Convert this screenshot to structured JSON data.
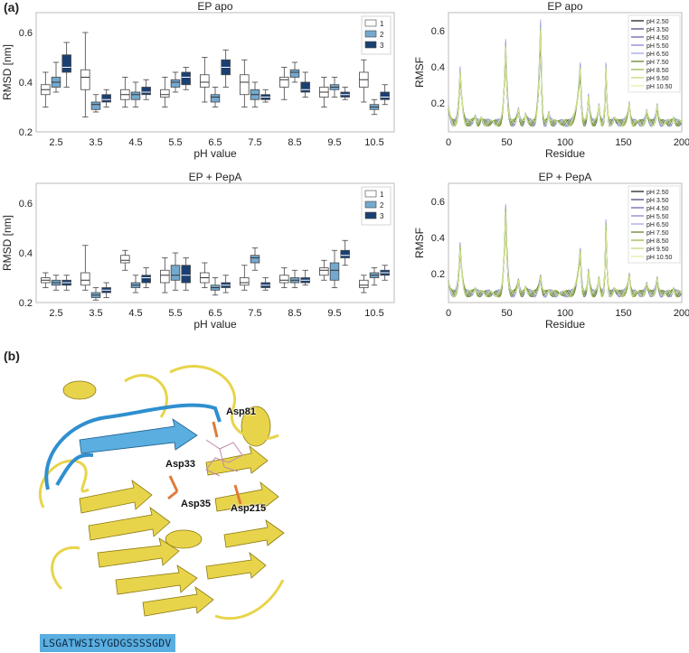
{
  "panel_labels": {
    "a": "(a)",
    "b": "(b)"
  },
  "chart_data": [
    {
      "id": "box-apo",
      "type": "box",
      "title": "EP apo",
      "xlabel": "pH value",
      "ylabel": "RMSD [nm]",
      "categories": [
        "2.5",
        "3.5",
        "4.5",
        "5.5",
        "6.5",
        "7.5",
        "8.5",
        "9.5",
        "10.5"
      ],
      "ylim": [
        0.2,
        0.68
      ],
      "yticks": [
        0.2,
        0.4,
        0.6
      ],
      "grid": false,
      "legend": "top-right",
      "series_colors": [
        "#ffffff",
        "#74a9cf",
        "#1a3f73"
      ],
      "series": [
        {
          "name": "1",
          "boxes": [
            {
              "min": 0.3,
              "q1": 0.35,
              "median": 0.37,
              "q3": 0.39,
              "max": 0.44
            },
            {
              "min": 0.26,
              "q1": 0.37,
              "median": 0.42,
              "q3": 0.45,
              "max": 0.6
            },
            {
              "min": 0.3,
              "q1": 0.33,
              "median": 0.35,
              "q3": 0.37,
              "max": 0.42
            },
            {
              "min": 0.3,
              "q1": 0.34,
              "median": 0.35,
              "q3": 0.37,
              "max": 0.42
            },
            {
              "min": 0.32,
              "q1": 0.38,
              "median": 0.4,
              "q3": 0.43,
              "max": 0.5
            },
            {
              "min": 0.3,
              "q1": 0.35,
              "median": 0.4,
              "q3": 0.43,
              "max": 0.49
            },
            {
              "min": 0.33,
              "q1": 0.38,
              "median": 0.41,
              "q3": 0.42,
              "max": 0.46
            },
            {
              "min": 0.3,
              "q1": 0.34,
              "median": 0.36,
              "q3": 0.38,
              "max": 0.42
            },
            {
              "min": 0.32,
              "q1": 0.38,
              "median": 0.41,
              "q3": 0.44,
              "max": 0.49
            }
          ]
        },
        {
          "name": "2",
          "boxes": [
            {
              "min": 0.36,
              "q1": 0.38,
              "median": 0.4,
              "q3": 0.42,
              "max": 0.48
            },
            {
              "min": 0.28,
              "q1": 0.29,
              "median": 0.31,
              "q3": 0.32,
              "max": 0.35
            },
            {
              "min": 0.3,
              "q1": 0.33,
              "median": 0.35,
              "q3": 0.36,
              "max": 0.4
            },
            {
              "min": 0.36,
              "q1": 0.38,
              "median": 0.4,
              "q3": 0.41,
              "max": 0.44
            },
            {
              "min": 0.3,
              "q1": 0.32,
              "median": 0.34,
              "q3": 0.35,
              "max": 0.38
            },
            {
              "min": 0.3,
              "q1": 0.33,
              "median": 0.35,
              "q3": 0.37,
              "max": 0.4
            },
            {
              "min": 0.4,
              "q1": 0.42,
              "median": 0.44,
              "q3": 0.45,
              "max": 0.48
            },
            {
              "min": 0.34,
              "q1": 0.37,
              "median": 0.38,
              "q3": 0.39,
              "max": 0.42
            },
            {
              "min": 0.27,
              "q1": 0.29,
              "median": 0.3,
              "q3": 0.31,
              "max": 0.33
            }
          ]
        },
        {
          "name": "3",
          "boxes": [
            {
              "min": 0.38,
              "q1": 0.44,
              "median": 0.46,
              "q3": 0.51,
              "max": 0.56
            },
            {
              "min": 0.3,
              "q1": 0.32,
              "median": 0.33,
              "q3": 0.35,
              "max": 0.37
            },
            {
              "min": 0.33,
              "q1": 0.35,
              "median": 0.36,
              "q3": 0.38,
              "max": 0.41
            },
            {
              "min": 0.37,
              "q1": 0.39,
              "median": 0.42,
              "q3": 0.44,
              "max": 0.46
            },
            {
              "min": 0.38,
              "q1": 0.43,
              "median": 0.46,
              "q3": 0.49,
              "max": 0.53
            },
            {
              "min": 0.32,
              "q1": 0.33,
              "median": 0.34,
              "q3": 0.35,
              "max": 0.37
            },
            {
              "min": 0.34,
              "q1": 0.36,
              "median": 0.37,
              "q3": 0.4,
              "max": 0.44
            },
            {
              "min": 0.33,
              "q1": 0.34,
              "median": 0.35,
              "q3": 0.36,
              "max": 0.38
            },
            {
              "min": 0.31,
              "q1": 0.33,
              "median": 0.34,
              "q3": 0.36,
              "max": 0.39
            }
          ]
        }
      ]
    },
    {
      "id": "rmsf-apo",
      "type": "line",
      "title": "EP apo",
      "xlabel": "Residue",
      "ylabel": "RMSF",
      "xlim": [
        0,
        200
      ],
      "ylim": [
        0.04,
        0.7
      ],
      "xticks": [
        0,
        50,
        100,
        150,
        200
      ],
      "yticks": [
        0.2,
        0.4,
        0.6
      ],
      "grid": false,
      "legend": "top-right",
      "peaks": [
        {
          "x": 0,
          "y": 0.18
        },
        {
          "x": 10,
          "y": 0.38
        },
        {
          "x": 23,
          "y": 0.13
        },
        {
          "x": 28,
          "y": 0.12
        },
        {
          "x": 38,
          "y": 0.1
        },
        {
          "x": 49,
          "y": 0.52
        },
        {
          "x": 60,
          "y": 0.17
        },
        {
          "x": 66,
          "y": 0.14
        },
        {
          "x": 79,
          "y": 0.62
        },
        {
          "x": 86,
          "y": 0.15
        },
        {
          "x": 93,
          "y": 0.1
        },
        {
          "x": 113,
          "y": 0.4
        },
        {
          "x": 120,
          "y": 0.24
        },
        {
          "x": 129,
          "y": 0.19
        },
        {
          "x": 135,
          "y": 0.4
        },
        {
          "x": 142,
          "y": 0.12
        },
        {
          "x": 155,
          "y": 0.2
        },
        {
          "x": 162,
          "y": 0.1
        },
        {
          "x": 170,
          "y": 0.16
        },
        {
          "x": 179,
          "y": 0.19
        },
        {
          "x": 186,
          "y": 0.1
        },
        {
          "x": 193,
          "y": 0.12
        },
        {
          "x": 200,
          "y": 0.09
        }
      ],
      "series": [
        {
          "name": "pH 2.50",
          "color": "#111111",
          "scale": 0.88
        },
        {
          "name": "pH 3.50",
          "color": "#3d3d6e",
          "scale": 0.95
        },
        {
          "name": "pH 4.50",
          "color": "#5a5aa8",
          "scale": 1.02
        },
        {
          "name": "pH 5.50",
          "color": "#7b7bd0",
          "scale": 1.05
        },
        {
          "name": "pH 6.50",
          "color": "#9aa0e6",
          "scale": 1.08
        },
        {
          "name": "pH 7.50",
          "color": "#5a7a1f",
          "scale": 0.92
        },
        {
          "name": "pH 8.50",
          "color": "#8fb33c",
          "scale": 0.98
        },
        {
          "name": "pH 9.50",
          "color": "#b8d86a",
          "scale": 1.0
        },
        {
          "name": "pH 10.50",
          "color": "#dfee9a",
          "scale": 0.96
        }
      ]
    },
    {
      "id": "box-pepa",
      "type": "box",
      "title": "EP + PepA",
      "xlabel": "pH value",
      "ylabel": "RMSD [nm]",
      "categories": [
        "2.5",
        "3.5",
        "4.5",
        "5.5",
        "6.5",
        "7.5",
        "8.5",
        "9.5",
        "10.5"
      ],
      "ylim": [
        0.2,
        0.68
      ],
      "yticks": [
        0.2,
        0.4,
        0.6
      ],
      "grid": false,
      "legend": "top-right",
      "series_colors": [
        "#ffffff",
        "#74a9cf",
        "#1a3f73"
      ],
      "series": [
        {
          "name": "1",
          "boxes": [
            {
              "min": 0.26,
              "q1": 0.28,
              "median": 0.29,
              "q3": 0.3,
              "max": 0.32
            },
            {
              "min": 0.25,
              "q1": 0.27,
              "median": 0.29,
              "q3": 0.32,
              "max": 0.43
            },
            {
              "min": 0.33,
              "q1": 0.36,
              "median": 0.37,
              "q3": 0.39,
              "max": 0.41
            },
            {
              "min": 0.24,
              "q1": 0.28,
              "median": 0.31,
              "q3": 0.33,
              "max": 0.38
            },
            {
              "min": 0.26,
              "q1": 0.28,
              "median": 0.3,
              "q3": 0.32,
              "max": 0.36
            },
            {
              "min": 0.25,
              "q1": 0.27,
              "median": 0.28,
              "q3": 0.3,
              "max": 0.35
            },
            {
              "min": 0.26,
              "q1": 0.28,
              "median": 0.29,
              "q3": 0.31,
              "max": 0.34
            },
            {
              "min": 0.29,
              "q1": 0.31,
              "median": 0.33,
              "q3": 0.34,
              "max": 0.37
            },
            {
              "min": 0.24,
              "q1": 0.26,
              "median": 0.27,
              "q3": 0.29,
              "max": 0.31
            }
          ]
        },
        {
          "name": "2",
          "boxes": [
            {
              "min": 0.25,
              "q1": 0.27,
              "median": 0.28,
              "q3": 0.29,
              "max": 0.31
            },
            {
              "min": 0.21,
              "q1": 0.22,
              "median": 0.23,
              "q3": 0.24,
              "max": 0.26
            },
            {
              "min": 0.24,
              "q1": 0.26,
              "median": 0.27,
              "q3": 0.28,
              "max": 0.31
            },
            {
              "min": 0.25,
              "q1": 0.29,
              "median": 0.31,
              "q3": 0.35,
              "max": 0.4
            },
            {
              "min": 0.23,
              "q1": 0.25,
              "median": 0.26,
              "q3": 0.27,
              "max": 0.3
            },
            {
              "min": 0.33,
              "q1": 0.36,
              "median": 0.38,
              "q3": 0.39,
              "max": 0.42
            },
            {
              "min": 0.26,
              "q1": 0.28,
              "median": 0.29,
              "q3": 0.3,
              "max": 0.33
            },
            {
              "min": 0.26,
              "q1": 0.29,
              "median": 0.33,
              "q3": 0.36,
              "max": 0.41
            },
            {
              "min": 0.27,
              "q1": 0.3,
              "median": 0.31,
              "q3": 0.32,
              "max": 0.34
            }
          ]
        },
        {
          "name": "3",
          "boxes": [
            {
              "min": 0.25,
              "q1": 0.27,
              "median": 0.28,
              "q3": 0.29,
              "max": 0.31
            },
            {
              "min": 0.22,
              "q1": 0.24,
              "median": 0.25,
              "q3": 0.26,
              "max": 0.28
            },
            {
              "min": 0.26,
              "q1": 0.28,
              "median": 0.3,
              "q3": 0.31,
              "max": 0.34
            },
            {
              "min": 0.25,
              "q1": 0.28,
              "median": 0.31,
              "q3": 0.35,
              "max": 0.38
            },
            {
              "min": 0.24,
              "q1": 0.26,
              "median": 0.27,
              "q3": 0.28,
              "max": 0.31
            },
            {
              "min": 0.25,
              "q1": 0.26,
              "median": 0.27,
              "q3": 0.28,
              "max": 0.3
            },
            {
              "min": 0.27,
              "q1": 0.28,
              "median": 0.29,
              "q3": 0.3,
              "max": 0.33
            },
            {
              "min": 0.35,
              "q1": 0.38,
              "median": 0.39,
              "q3": 0.41,
              "max": 0.45
            },
            {
              "min": 0.29,
              "q1": 0.31,
              "median": 0.32,
              "q3": 0.33,
              "max": 0.35
            }
          ]
        }
      ]
    },
    {
      "id": "rmsf-pepa",
      "type": "line",
      "title": "EP + PepA",
      "xlabel": "Residue",
      "ylabel": "RMSF",
      "xlim": [
        0,
        200
      ],
      "ylim": [
        0.04,
        0.7
      ],
      "xticks": [
        0,
        50,
        100,
        150,
        200
      ],
      "yticks": [
        0.2,
        0.4,
        0.6
      ],
      "grid": false,
      "legend": "top-right",
      "peaks": [
        {
          "x": 0,
          "y": 0.16
        },
        {
          "x": 10,
          "y": 0.36
        },
        {
          "x": 23,
          "y": 0.12
        },
        {
          "x": 30,
          "y": 0.1
        },
        {
          "x": 38,
          "y": 0.09
        },
        {
          "x": 49,
          "y": 0.56
        },
        {
          "x": 60,
          "y": 0.17
        },
        {
          "x": 66,
          "y": 0.13
        },
        {
          "x": 79,
          "y": 0.19
        },
        {
          "x": 86,
          "y": 0.11
        },
        {
          "x": 95,
          "y": 0.09
        },
        {
          "x": 113,
          "y": 0.33
        },
        {
          "x": 120,
          "y": 0.22
        },
        {
          "x": 129,
          "y": 0.18
        },
        {
          "x": 135,
          "y": 0.48
        },
        {
          "x": 142,
          "y": 0.12
        },
        {
          "x": 155,
          "y": 0.2
        },
        {
          "x": 162,
          "y": 0.1
        },
        {
          "x": 170,
          "y": 0.15
        },
        {
          "x": 179,
          "y": 0.18
        },
        {
          "x": 186,
          "y": 0.1
        },
        {
          "x": 193,
          "y": 0.12
        },
        {
          "x": 200,
          "y": 0.09
        }
      ],
      "series": [
        {
          "name": "pH 2.50",
          "color": "#111111",
          "scale": 0.86
        },
        {
          "name": "pH 3.50",
          "color": "#3d3d6e",
          "scale": 0.92
        },
        {
          "name": "pH 4.50",
          "color": "#5a5aa8",
          "scale": 0.98
        },
        {
          "name": "pH 5.50",
          "color": "#7b7bd0",
          "scale": 1.05
        },
        {
          "name": "pH 6.50",
          "color": "#9aa0e6",
          "scale": 1.02
        },
        {
          "name": "pH 7.50",
          "color": "#5a7a1f",
          "scale": 0.95
        },
        {
          "name": "pH 8.50",
          "color": "#8fb33c",
          "scale": 1.0
        },
        {
          "name": "pH 9.50",
          "color": "#b8d86a",
          "scale": 0.97
        },
        {
          "name": "pH 10.50",
          "color": "#dfee9a",
          "scale": 0.9
        }
      ]
    }
  ],
  "structure": {
    "residue_labels": [
      "Asp81",
      "Asp33",
      "Asp35",
      "Asp215"
    ],
    "sequence": "LSGATWSISYGDGSSSSGDV",
    "colors": {
      "helix": "#e8d44a",
      "loop_highlight": "#2f8fcf",
      "asp": "#e07a3a"
    }
  }
}
